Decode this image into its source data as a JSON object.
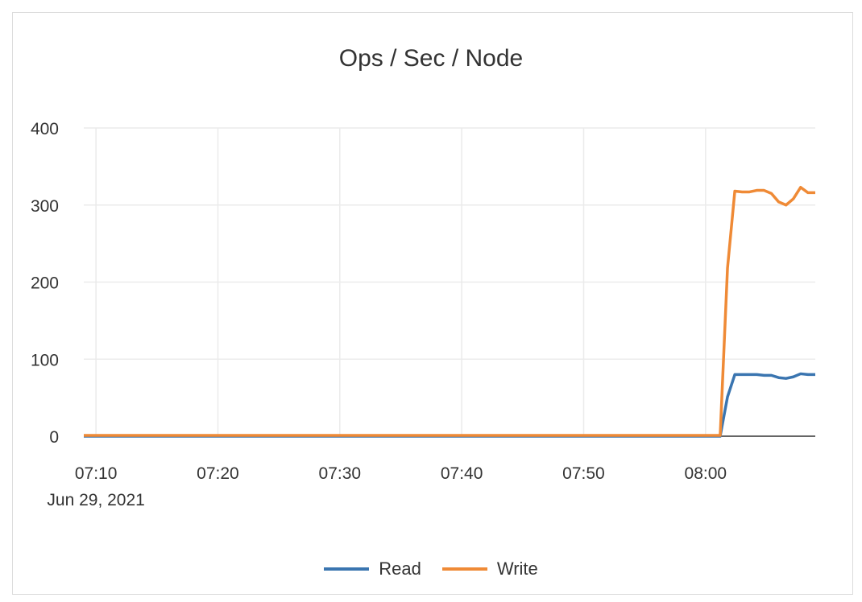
{
  "colors": {
    "read": "#3a75b0",
    "write": "#ef8a36",
    "grid": "#ebebeb",
    "axis": "#333333"
  },
  "chart_data": {
    "type": "line",
    "title": "Ops / Sec / Node",
    "xlabel": "",
    "ylabel": "",
    "ylim": [
      0,
      400
    ],
    "yticks": [
      "0",
      "100",
      "200",
      "300",
      "400"
    ],
    "xlim": [
      "07:09:00",
      "08:09:00"
    ],
    "xticks": [
      "07:10",
      "07:20",
      "07:30",
      "07:40",
      "07:50",
      "08:00"
    ],
    "xtick_sublabel": "Jun 29, 2021",
    "grid": true,
    "legend": "bottom",
    "x": [
      "07:09:00",
      "07:15:00",
      "07:21:00",
      "07:27:00",
      "07:33:00",
      "07:39:00",
      "07:45:00",
      "07:51:00",
      "07:57:00",
      "08:00:36",
      "08:01:12",
      "08:01:48",
      "08:02:24",
      "08:03:00",
      "08:03:36",
      "08:04:12",
      "08:04:48",
      "08:05:24",
      "08:06:00",
      "08:06:36",
      "08:07:12",
      "08:07:48",
      "08:08:24",
      "08:09:00"
    ],
    "series": [
      {
        "name": "Read",
        "values": [
          0,
          0,
          0,
          0,
          0,
          0,
          0,
          0,
          0,
          0,
          0,
          51,
          80,
          80,
          80,
          80,
          79,
          79,
          76,
          75,
          77,
          81,
          80,
          80
        ]
      },
      {
        "name": "Write",
        "values": [
          1,
          1,
          1,
          1,
          1,
          1,
          1,
          1,
          1,
          1,
          1,
          218,
          318,
          317,
          317,
          319,
          319,
          315,
          304,
          300,
          308,
          323,
          316,
          316
        ]
      }
    ]
  }
}
